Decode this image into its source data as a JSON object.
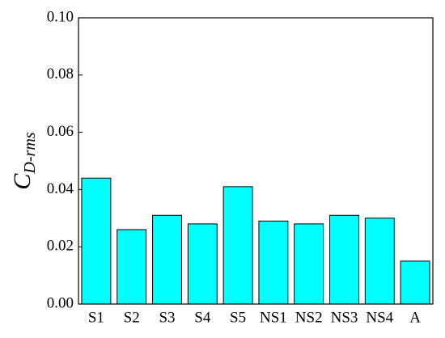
{
  "chart_data": {
    "type": "bar",
    "ylabel": {
      "main": "C",
      "sub": "D-rms"
    },
    "categories": [
      "S1",
      "S2",
      "S3",
      "S4",
      "S5",
      "NS1",
      "NS2",
      "NS3",
      "NS4",
      "A"
    ],
    "values": [
      0.044,
      0.026,
      0.031,
      0.028,
      0.041,
      0.029,
      0.028,
      0.031,
      0.03,
      0.015
    ],
    "color": "#00ffff",
    "ylim": [
      0,
      0.1
    ],
    "yticks": [
      {
        "value": 0,
        "label": "0.00"
      },
      {
        "value": 0.02,
        "label": "0.02"
      },
      {
        "value": 0.04,
        "label": "0.04"
      },
      {
        "value": 0.06,
        "label": "0.06"
      },
      {
        "value": 0.08,
        "label": "0.08"
      },
      {
        "value": 0.1,
        "label": "0.10"
      }
    ]
  }
}
